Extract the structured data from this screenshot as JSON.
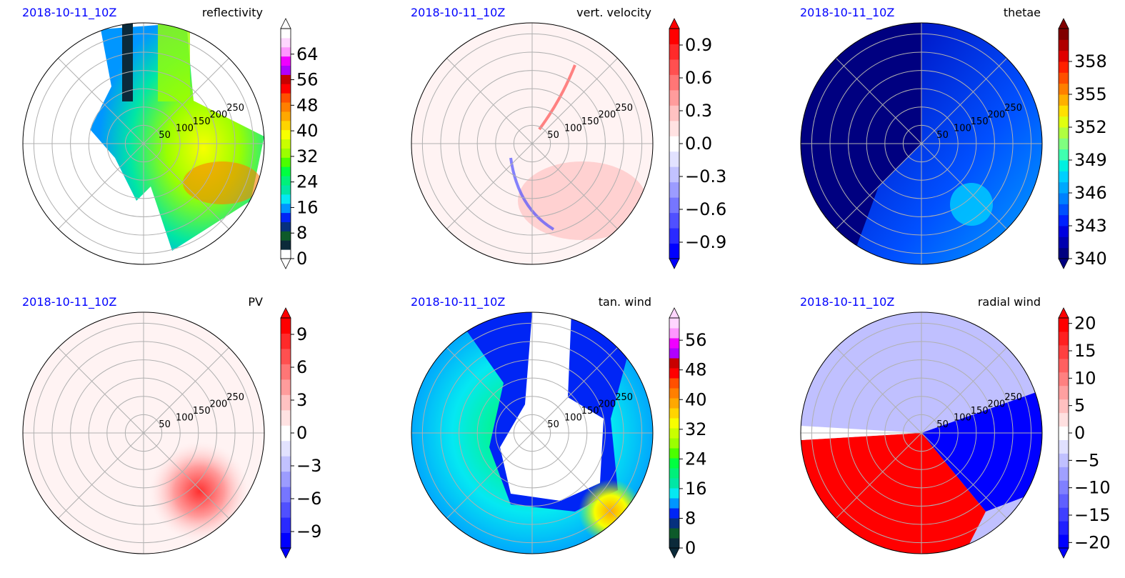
{
  "figure": {
    "panels": [
      {
        "date": "2018-10-11_10Z",
        "title": "reflectivity",
        "ring_labels": [
          "50",
          "100",
          "150",
          "200",
          "250"
        ],
        "colorbar": {
          "ticks": [
            "0",
            "8",
            "16",
            "24",
            "32",
            "40",
            "48",
            "56",
            "64"
          ],
          "tick_values": [
            0,
            8,
            16,
            24,
            32,
            40,
            48,
            56,
            64
          ],
          "range": [
            0,
            72
          ],
          "colors": [
            "#ffffff",
            "#0b2a3a",
            "#0d5a2a",
            "#06307e",
            "#0025f5",
            "#0096ff",
            "#05e8f2",
            "#00e6a5",
            "#00f07a",
            "#00ff40",
            "#4bff00",
            "#9bff00",
            "#c9ff00",
            "#f7ff00",
            "#ffd400",
            "#ffa800",
            "#ff7f00",
            "#ff5000",
            "#ff0000",
            "#c80000",
            "#b000ff",
            "#f000ff",
            "#ff96ff",
            "#ffd6ff",
            "#ffffff"
          ],
          "extend": "both"
        }
      },
      {
        "date": "2018-10-11_10Z",
        "title": "vert. velocity",
        "ring_labels": [
          "50",
          "100",
          "150",
          "200",
          "250"
        ],
        "colorbar": {
          "ticks": [
            "−0.9",
            "−0.6",
            "−0.3",
            "0.0",
            "0.3",
            "0.6",
            "0.9"
          ],
          "tick_values": [
            -0.9,
            -0.6,
            -0.3,
            0.0,
            0.3,
            0.6,
            0.9
          ],
          "range": [
            -1.05,
            1.05
          ],
          "colors": [
            "#0000ff",
            "#2a2aff",
            "#5050ff",
            "#7676ff",
            "#9c9cff",
            "#c2c2ff",
            "#e2e2ff",
            "#ffffff",
            "#ffe2e2",
            "#ffc2c2",
            "#ff9c9c",
            "#ff7676",
            "#ff5050",
            "#ff2a2a",
            "#ff0000"
          ],
          "extend": "both"
        }
      },
      {
        "date": "2018-10-11_10Z",
        "title": "thetae",
        "ring_labels": [
          "50",
          "100",
          "150",
          "200",
          "250"
        ],
        "colorbar": {
          "ticks": [
            "340",
            "343",
            "346",
            "349",
            "352",
            "355",
            "358"
          ],
          "tick_values": [
            340,
            343,
            346,
            349,
            352,
            355,
            358
          ],
          "range": [
            340,
            361
          ],
          "colors": [
            "#000080",
            "#0000b0",
            "#0000e0",
            "#0020ff",
            "#0050ff",
            "#0080ff",
            "#00a8ff",
            "#00d0ff",
            "#00f0e0",
            "#40ffb0",
            "#80ff80",
            "#b0ff40",
            "#e0ff10",
            "#ffe000",
            "#ffb000",
            "#ff8000",
            "#ff5000",
            "#ff2000",
            "#e00000",
            "#b00000",
            "#800000"
          ],
          "extend": "both"
        }
      },
      {
        "date": "2018-10-11_10Z",
        "title": "PV",
        "ring_labels": [
          "50",
          "100",
          "150",
          "200",
          "250"
        ],
        "colorbar": {
          "ticks": [
            "−9",
            "−6",
            "−3",
            "0",
            "3",
            "6",
            "9"
          ],
          "tick_values": [
            -9,
            -6,
            -3,
            0,
            3,
            6,
            9
          ],
          "range": [
            -10.5,
            10.5
          ],
          "colors": [
            "#0000ff",
            "#2a2aff",
            "#5050ff",
            "#7676ff",
            "#9c9cff",
            "#c2c2ff",
            "#e2e2ff",
            "#ffffff",
            "#ffe2e2",
            "#ffc2c2",
            "#ff9c9c",
            "#ff7676",
            "#ff5050",
            "#ff2a2a",
            "#ff0000"
          ],
          "extend": "both"
        }
      },
      {
        "date": "2018-10-11_10Z",
        "title": "tan. wind",
        "ring_labels": [
          "50",
          "100",
          "150",
          "200",
          "250"
        ],
        "colorbar": {
          "ticks": [
            "0",
            "8",
            "16",
            "24",
            "32",
            "40",
            "48",
            "56"
          ],
          "tick_values": [
            0,
            8,
            16,
            24,
            32,
            40,
            48,
            56
          ],
          "range": [
            0,
            62
          ],
          "colors": [
            "#0b2a3a",
            "#0d5a2a",
            "#06307e",
            "#0025f5",
            "#0096ff",
            "#05e8f2",
            "#00e6a5",
            "#00f07a",
            "#00ff40",
            "#4bff00",
            "#9bff00",
            "#c9ff00",
            "#f7ff00",
            "#ffd400",
            "#ffa800",
            "#ff7f00",
            "#ff5000",
            "#ff0000",
            "#c80000",
            "#b000ff",
            "#f000ff",
            "#ff96ff",
            "#ffd6ff"
          ],
          "extend": "both"
        }
      },
      {
        "date": "2018-10-11_10Z",
        "title": "radial wind",
        "ring_labels": [
          "50",
          "100",
          "150",
          "200",
          "250"
        ],
        "colorbar": {
          "ticks": [
            "−20",
            "−15",
            "−10",
            "−5",
            "0",
            "5",
            "10",
            "15",
            "20"
          ],
          "tick_values": [
            -20,
            -15,
            -10,
            -5,
            0,
            5,
            10,
            15,
            20
          ],
          "range": [
            -21,
            21
          ],
          "colors": [
            "#0000ff",
            "#2020ff",
            "#4040ff",
            "#6060ff",
            "#8080ff",
            "#a0a0ff",
            "#c0c0ff",
            "#e0e0ff",
            "#ffffff",
            "#ffe0e0",
            "#ffc0c0",
            "#ffa0a0",
            "#ff8080",
            "#ff6060",
            "#ff4040",
            "#ff2020",
            "#ff0000"
          ],
          "extend": "both"
        }
      }
    ]
  },
  "chart_data": [
    {
      "type": "heatmap",
      "title": "reflectivity",
      "subtitle": "2018-10-11_10Z",
      "ring_labels": [
        50,
        100,
        150,
        200,
        250
      ],
      "colorbar_range": [
        0,
        72
      ],
      "grid": true
    },
    {
      "type": "heatmap",
      "title": "vert. velocity",
      "subtitle": "2018-10-11_10Z",
      "ring_labels": [
        50,
        100,
        150,
        200,
        250
      ],
      "colorbar_range": [
        -1.05,
        1.05
      ],
      "grid": true
    },
    {
      "type": "heatmap",
      "title": "thetae",
      "subtitle": "2018-10-11_10Z",
      "ring_labels": [
        50,
        100,
        150,
        200,
        250
      ],
      "colorbar_range": [
        340,
        361
      ],
      "grid": true
    },
    {
      "type": "heatmap",
      "title": "PV",
      "subtitle": "2018-10-11_10Z",
      "ring_labels": [
        50,
        100,
        150,
        200,
        250
      ],
      "colorbar_range": [
        -10.5,
        10.5
      ],
      "grid": true
    },
    {
      "type": "heatmap",
      "title": "tan. wind",
      "subtitle": "2018-10-11_10Z",
      "ring_labels": [
        50,
        100,
        150,
        200,
        250
      ],
      "colorbar_range": [
        0,
        62
      ],
      "grid": true
    },
    {
      "type": "heatmap",
      "title": "radial wind",
      "subtitle": "2018-10-11_10Z",
      "ring_labels": [
        50,
        100,
        150,
        200,
        250
      ],
      "colorbar_range": [
        -21,
        21
      ],
      "grid": true
    }
  ]
}
